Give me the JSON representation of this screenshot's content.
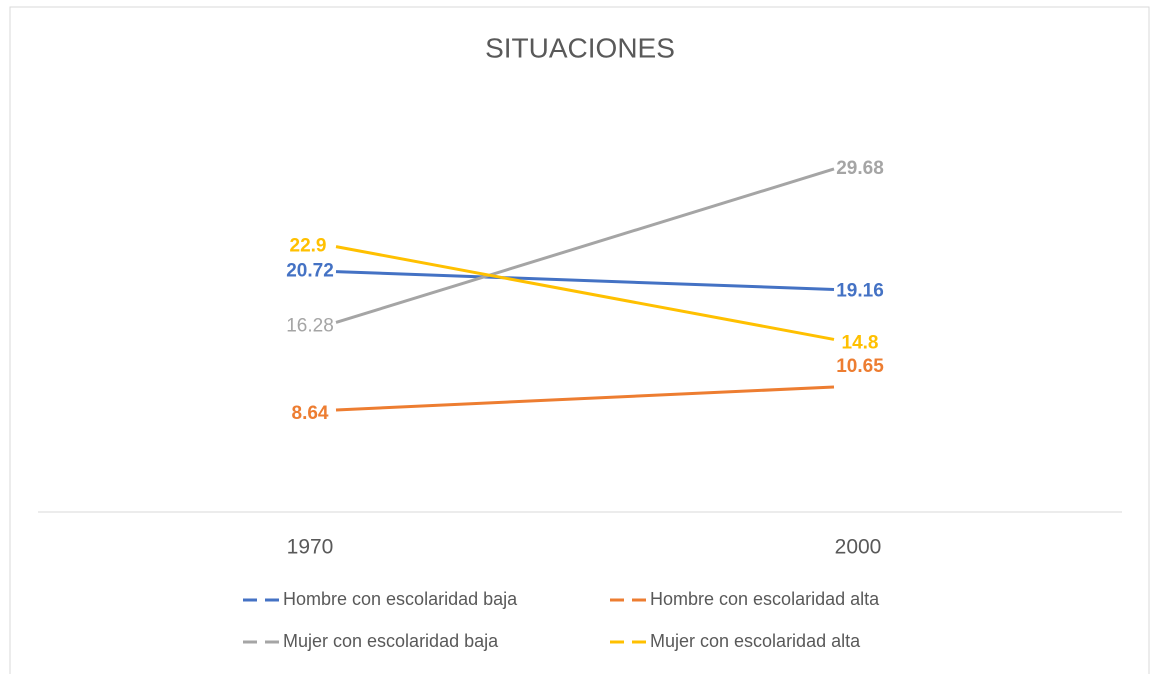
{
  "chart_data": {
    "type": "line",
    "title": "SITUACIONES",
    "categories": [
      "1970",
      "2000"
    ],
    "series": [
      {
        "name": "Hombre con escolaridad baja",
        "color": "#4472c4",
        "values": [
          20.72,
          19.16
        ]
      },
      {
        "name": "Hombre con escolaridad alta",
        "color": "#ed7d31",
        "values": [
          8.64,
          10.65
        ]
      },
      {
        "name": "Mujer con escolaridad baja",
        "color": "#a5a5a5",
        "values": [
          16.28,
          29.68
        ]
      },
      {
        "name": "Mujer con escolaridad alta",
        "color": "#ffc000",
        "values": [
          22.9,
          14.8
        ]
      }
    ],
    "ylim": [
      0,
      35
    ],
    "grid": false,
    "legend": "bottom"
  }
}
